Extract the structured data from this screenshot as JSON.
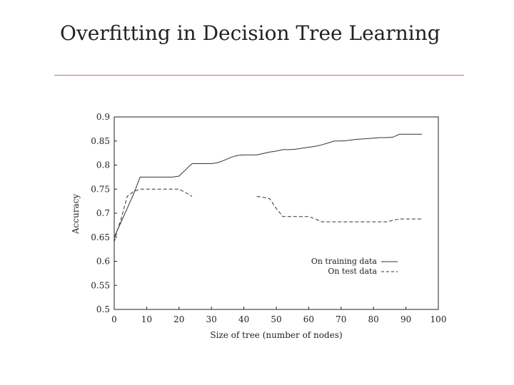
{
  "slide": {
    "title": "Overfitting in Decision Tree Learning"
  },
  "colors": {
    "rule": "#d06a6a",
    "axis": "#222222",
    "series": "#333333"
  },
  "chart_data": {
    "type": "line",
    "xlabel": "Size of tree (number of nodes)",
    "ylabel": "Accuracy",
    "xlim": [
      0,
      100
    ],
    "ylim": [
      0.5,
      0.9
    ],
    "xticks": [
      "0",
      "10",
      "20",
      "30",
      "40",
      "50",
      "60",
      "70",
      "80",
      "90",
      "100"
    ],
    "yticks": [
      "0.5",
      "0.55",
      "0.6",
      "0.65",
      "0.7",
      "0.75",
      "0.8",
      "0.85",
      "0.9"
    ],
    "grid": false,
    "legend_position": "bottom-right",
    "series": [
      {
        "name": "On training data",
        "style": "solid",
        "x": [
          0,
          2,
          4,
          6,
          8,
          10,
          12,
          14,
          16,
          18,
          20,
          22,
          24,
          26,
          28,
          30,
          32,
          34,
          36,
          38,
          40,
          42,
          44,
          46,
          48,
          50,
          52,
          54,
          56,
          58,
          60,
          62,
          64,
          66,
          68,
          70,
          72,
          74,
          76,
          78,
          80,
          82,
          84,
          86,
          88,
          90,
          92,
          95
        ],
        "values": [
          0.65,
          0.68,
          0.71,
          0.74,
          0.775,
          0.775,
          0.775,
          0.775,
          0.775,
          0.775,
          0.777,
          0.79,
          0.803,
          0.803,
          0.803,
          0.803,
          0.805,
          0.81,
          0.816,
          0.82,
          0.821,
          0.821,
          0.821,
          0.824,
          0.827,
          0.829,
          0.832,
          0.832,
          0.833,
          0.835,
          0.837,
          0.839,
          0.842,
          0.846,
          0.85,
          0.85,
          0.851,
          0.853,
          0.854,
          0.855,
          0.856,
          0.857,
          0.857,
          0.858,
          0.864,
          0.864,
          0.864,
          0.864
        ]
      },
      {
        "name": "On test data",
        "style": "dashed",
        "segments": [
          {
            "x": [
              0,
              1,
              2,
              3,
              4,
              6,
              8,
              10,
              12,
              14,
              16,
              18,
              20,
              22,
              24
            ],
            "values": [
              0.64,
              0.665,
              0.685,
              0.71,
              0.735,
              0.745,
              0.75,
              0.75,
              0.75,
              0.75,
              0.75,
              0.75,
              0.75,
              0.743,
              0.735
            ]
          },
          {
            "x": [
              44,
              46,
              48,
              50,
              52,
              54,
              56,
              58,
              60,
              62,
              64,
              66,
              68,
              70,
              72,
              74,
              76,
              78,
              80,
              82,
              84,
              86,
              88,
              90,
              92,
              95
            ],
            "values": [
              0.735,
              0.733,
              0.73,
              0.71,
              0.693,
              0.693,
              0.693,
              0.693,
              0.693,
              0.688,
              0.682,
              0.682,
              0.682,
              0.682,
              0.682,
              0.682,
              0.682,
              0.682,
              0.682,
              0.682,
              0.682,
              0.685,
              0.688,
              0.688,
              0.688,
              0.688
            ]
          }
        ]
      }
    ]
  }
}
